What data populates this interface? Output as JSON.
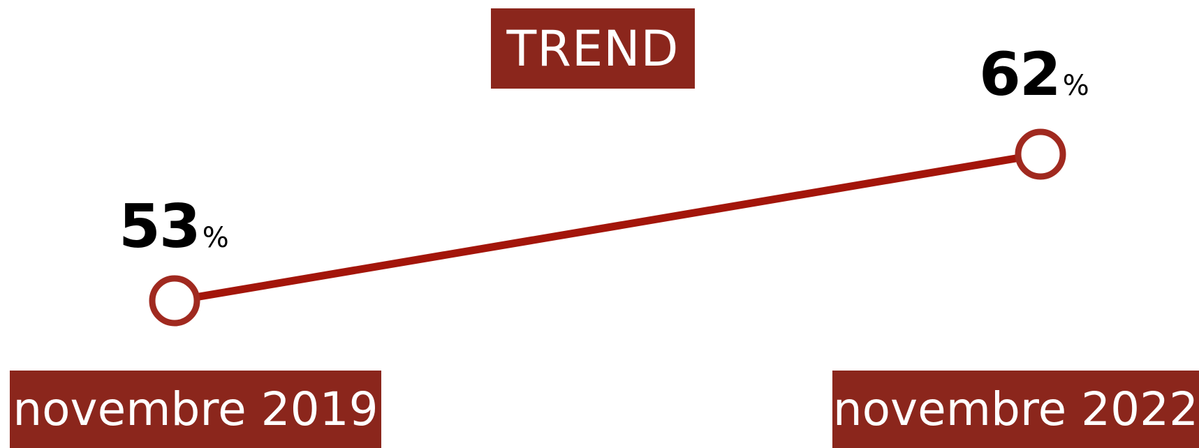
{
  "chart_data": {
    "type": "line",
    "title": "TREND",
    "categories": [
      "novembre 2019",
      "novembre 2022"
    ],
    "values": [
      53,
      62
    ],
    "value_suffix": "%",
    "line_color": "#a3150a",
    "marker_stroke_color": "#a0291f",
    "box_color": "#8b261c"
  }
}
